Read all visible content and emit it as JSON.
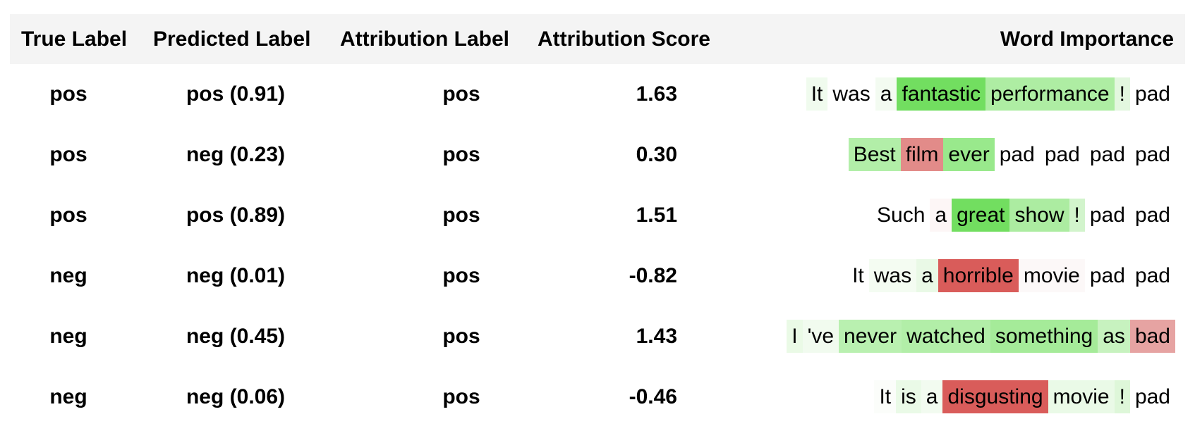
{
  "headers": {
    "true_label": "True Label",
    "predicted_label": "Predicted Label",
    "attribution_label": "Attribution Label",
    "attribution_score": "Attribution Score",
    "word_importance": "Word Importance"
  },
  "rows": [
    {
      "true_label": "pos",
      "predicted_label": "pos (0.91)",
      "attribution_label": "pos",
      "attribution_score": "1.63",
      "words": [
        {
          "text": "It",
          "color": "#f0fbee"
        },
        {
          "text": "was",
          "color": "#ffffff"
        },
        {
          "text": "a",
          "color": "#f3fbf1"
        },
        {
          "text": "fantastic",
          "color": "#72de60"
        },
        {
          "text": "performance",
          "color": "#aeeda3"
        },
        {
          "text": "!",
          "color": "#e3f7df"
        },
        {
          "text": "pad",
          "color": "#ffffff"
        }
      ]
    },
    {
      "true_label": "pos",
      "predicted_label": "neg (0.23)",
      "attribution_label": "pos",
      "attribution_score": "0.30",
      "words": [
        {
          "text": "Best",
          "color": "#b2eea8"
        },
        {
          "text": "film",
          "color": "#e28b89"
        },
        {
          "text": "ever",
          "color": "#99e98c"
        },
        {
          "text": "pad",
          "color": "#ffffff"
        },
        {
          "text": "pad",
          "color": "#ffffff"
        },
        {
          "text": "pad",
          "color": "#ffffff"
        },
        {
          "text": "pad",
          "color": "#ffffff"
        }
      ]
    },
    {
      "true_label": "pos",
      "predicted_label": "pos (0.89)",
      "attribution_label": "pos",
      "attribution_score": "1.51",
      "words": [
        {
          "text": "Such",
          "color": "#ffffff"
        },
        {
          "text": "a",
          "color": "#fdf6f6"
        },
        {
          "text": "great",
          "color": "#72de60"
        },
        {
          "text": "show",
          "color": "#acecA1"
        },
        {
          "text": "!",
          "color": "#d2f4cc"
        },
        {
          "text": "pad",
          "color": "#ffffff"
        },
        {
          "text": "pad",
          "color": "#ffffff"
        }
      ]
    },
    {
      "true_label": "neg",
      "predicted_label": "neg (0.01)",
      "attribution_label": "pos",
      "attribution_score": "-0.82",
      "words": [
        {
          "text": "It",
          "color": "#ffffff"
        },
        {
          "text": "was",
          "color": "#f4fcf2"
        },
        {
          "text": "a",
          "color": "#e9f9e6"
        },
        {
          "text": "horrible",
          "color": "#d95c5a"
        },
        {
          "text": "movie",
          "color": "#fcf8f8"
        },
        {
          "text": "pad",
          "color": "#ffffff"
        },
        {
          "text": "pad",
          "color": "#ffffff"
        }
      ]
    },
    {
      "true_label": "neg",
      "predicted_label": "neg (0.45)",
      "attribution_label": "pos",
      "attribution_score": "1.43",
      "words": [
        {
          "text": "I",
          "color": "#eafaE6"
        },
        {
          "text": "'ve",
          "color": "#f1fbef"
        },
        {
          "text": "never",
          "color": "#b9f0b0"
        },
        {
          "text": "watched",
          "color": "#b2eea8"
        },
        {
          "text": "something",
          "color": "#a5eb99"
        },
        {
          "text": "as",
          "color": "#c7f2bf"
        },
        {
          "text": "bad",
          "color": "#e6a3a2"
        }
      ]
    },
    {
      "true_label": "neg",
      "predicted_label": "neg (0.06)",
      "attribution_label": "pos",
      "attribution_score": "-0.46",
      "words": [
        {
          "text": "It",
          "color": "#fbfdfa"
        },
        {
          "text": "is",
          "color": "#eafae7"
        },
        {
          "text": "a",
          "color": "#f2fbf0"
        },
        {
          "text": "disgusting",
          "color": "#d95c5a"
        },
        {
          "text": "movie",
          "color": "#eafae7"
        },
        {
          "text": "!",
          "color": "#def7d9"
        },
        {
          "text": "pad",
          "color": "#ffffff"
        }
      ]
    }
  ]
}
